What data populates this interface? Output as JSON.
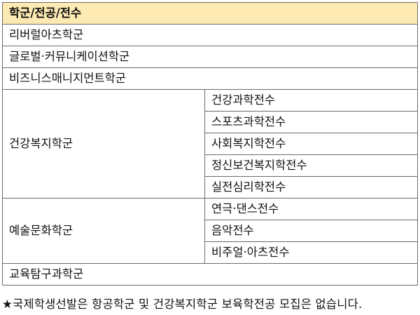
{
  "header": "학군/전공/전수",
  "rows_single_before": [
    "리버럴아츠학군",
    "글로벌·커뮤니케이션학군",
    "비즈니스매니지먼트학군"
  ],
  "groups": [
    {
      "name": "건강복지학군",
      "majors": [
        "건강과학전수",
        "스포츠과학전수",
        "사회복지학전수",
        "정신보건복지학전수",
        "실전심리학전수"
      ]
    },
    {
      "name": "예술문화학군",
      "majors": [
        "연극·댄스전수",
        "음악전수",
        "비주얼·아츠전수"
      ]
    }
  ],
  "rows_single_after": [
    "교육탐구과학군"
  ],
  "note": "★국제학생선발은 항공학군 및 건강복지학군 보육학전공 모집은 없습니다.",
  "colors": {
    "header_bg": "#fde9b2",
    "border": "#6b6b6b"
  }
}
